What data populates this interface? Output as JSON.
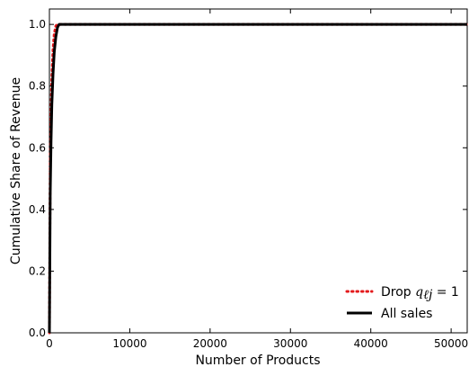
{
  "chart_data": {
    "type": "line",
    "title": "",
    "xlabel": "Number of Products",
    "ylabel": "Cumulative Share of Revenue",
    "xlim": [
      0,
      52000
    ],
    "ylim": [
      0,
      1.05
    ],
    "x_ticks": [
      0,
      10000,
      20000,
      30000,
      40000,
      50000
    ],
    "x_tick_labels": [
      "0",
      "10000",
      "20000",
      "30000",
      "40000",
      "50000"
    ],
    "y_ticks": [
      0.0,
      0.2,
      0.4,
      0.6,
      0.8,
      1.0
    ],
    "y_tick_labels": [
      "0.0",
      "0.2",
      "0.4",
      "0.6",
      "0.8",
      "1.0"
    ],
    "grid": false,
    "legend_position": "bottom-right",
    "legend": {
      "drop_prefix": "Drop ",
      "drop_math": "q",
      "drop_sub": "ℓj",
      "drop_suffix": " = 1",
      "all_sales": "All sales"
    },
    "series": [
      {
        "name": "Drop q_{ℓj} = 1",
        "color": "#e31a1c",
        "style": "dotted",
        "x": [
          0,
          100,
          200,
          300,
          450,
          600,
          800,
          1000,
          52000
        ],
        "y": [
          0.0,
          0.55,
          0.72,
          0.83,
          0.92,
          0.97,
          0.995,
          1.0,
          1.0
        ]
      },
      {
        "name": "All sales",
        "color": "#000000",
        "style": "solid",
        "x": [
          0,
          100,
          200,
          300,
          450,
          600,
          800,
          1000,
          1200,
          52000
        ],
        "y": [
          0.0,
          0.45,
          0.62,
          0.74,
          0.84,
          0.91,
          0.96,
          0.99,
          1.0,
          1.0
        ]
      }
    ]
  }
}
